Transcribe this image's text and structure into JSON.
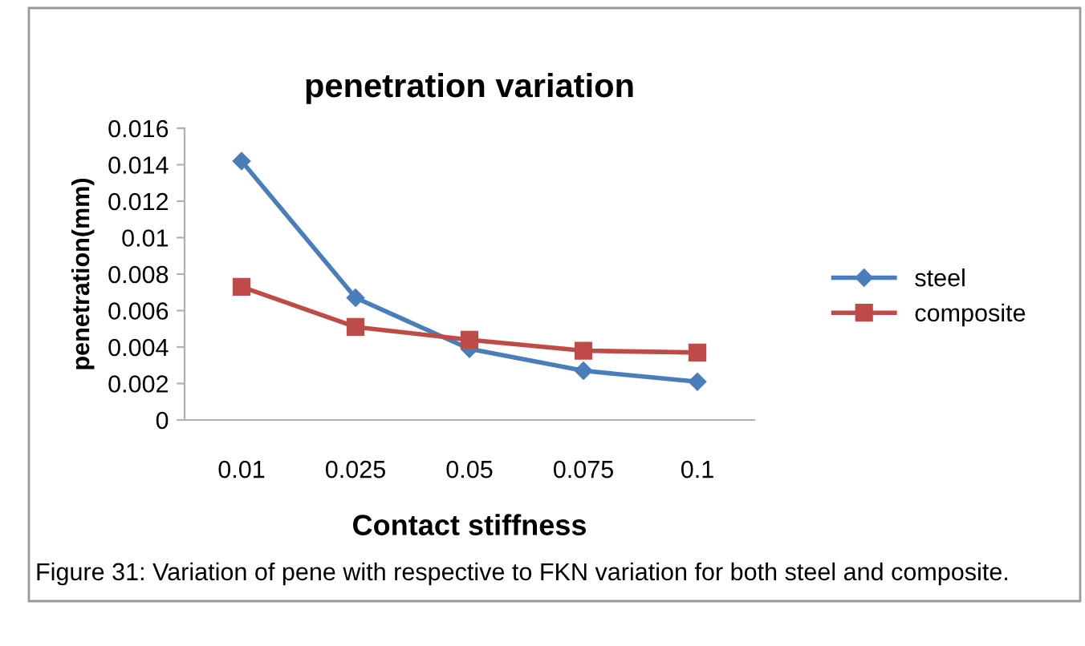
{
  "chart_data": {
    "type": "line",
    "title": "penetration variation",
    "xlabel": "Contact stiffness",
    "ylabel": "penetration(mm)",
    "categories": [
      "0.01",
      "0.025",
      "0.05",
      "0.075",
      "0.1"
    ],
    "series": [
      {
        "name": "steel",
        "color": "#4a7ebb",
        "marker": "diamond",
        "values": [
          0.0142,
          0.0067,
          0.0039,
          0.0027,
          0.0021
        ]
      },
      {
        "name": "composite",
        "color": "#be4b48",
        "marker": "square",
        "values": [
          0.0073,
          0.0051,
          0.0044,
          0.0038,
          0.0037
        ]
      }
    ],
    "ylim": [
      0,
      0.016
    ],
    "yticks": [
      0,
      0.002,
      0.004,
      0.006,
      0.008,
      0.01,
      0.012,
      0.014,
      0.016
    ],
    "grid": false,
    "legend": "right",
    "line_style": "solid",
    "annotations": [
      "Figure 31: Variation of pene with respective to FKN variation for both steel and composite."
    ]
  }
}
